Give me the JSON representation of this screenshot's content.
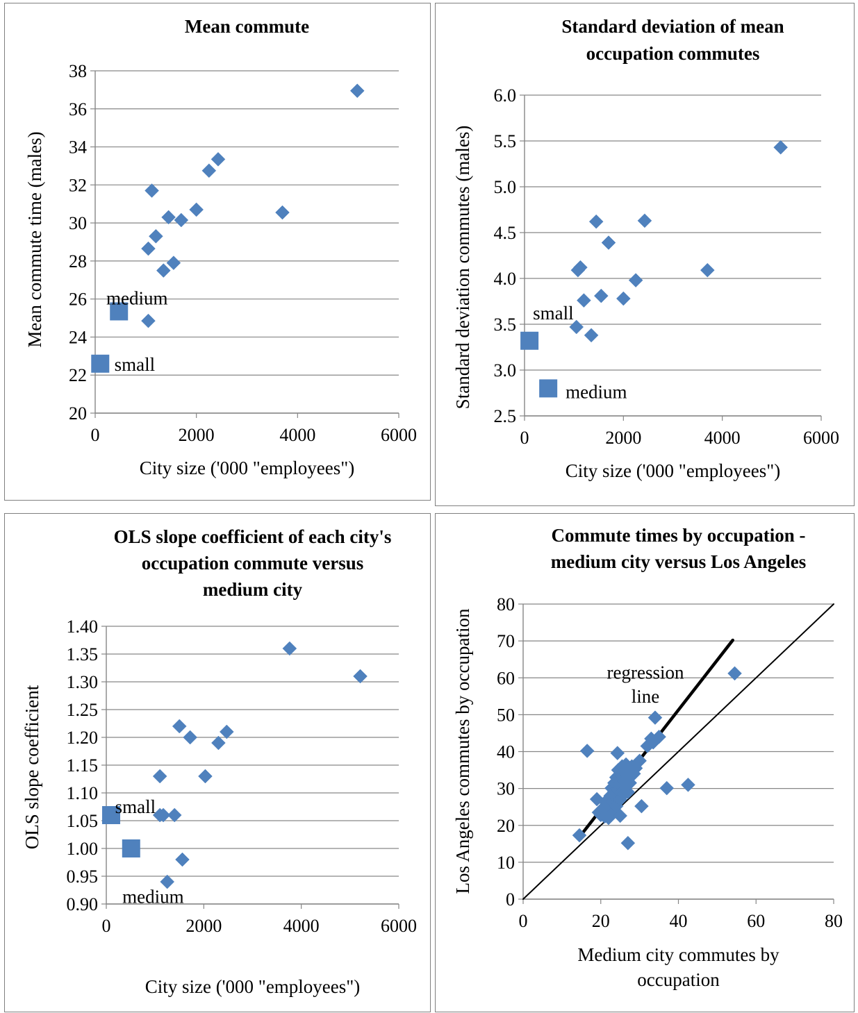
{
  "chart_data": [
    {
      "type": "scatter",
      "title": [
        "Mean commute"
      ],
      "xlabel": [
        "City size ('000 \"employees\")"
      ],
      "ylabel": "Mean commute time (males)",
      "xlim": [
        0,
        6000
      ],
      "ylim": [
        20,
        38
      ],
      "xticks": [
        0,
        2000,
        4000,
        6000
      ],
      "yticks": [
        20,
        22,
        24,
        26,
        28,
        30,
        32,
        34,
        36,
        38
      ],
      "tick_decimals": 0,
      "grid": true,
      "series": [
        {
          "marker": "diamond",
          "color": "#4f81bd",
          "points": [
            [
              1050,
              24.85
            ],
            [
              1050,
              28.65
            ],
            [
              1120,
              31.7
            ],
            [
              1200,
              29.3
            ],
            [
              1350,
              27.5
            ],
            [
              1450,
              30.3
            ],
            [
              1550,
              27.9
            ],
            [
              1700,
              30.15
            ],
            [
              2000,
              30.7
            ],
            [
              2250,
              32.75
            ],
            [
              2430,
              33.35
            ],
            [
              3700,
              30.55
            ],
            [
              5180,
              36.95
            ]
          ]
        },
        {
          "marker": "square",
          "color": "#4f81bd",
          "points": [
            [
              100,
              22.6
            ],
            [
              470,
              25.35
            ]
          ]
        }
      ],
      "annotations": [
        {
          "text": "medium",
          "x": 220,
          "y": 26.05,
          "anchor": "start"
        },
        {
          "text": "small",
          "x": 380,
          "y": 22.55,
          "anchor": "start"
        }
      ]
    },
    {
      "type": "scatter",
      "title": [
        "Standard deviation of mean",
        "occupation commutes"
      ],
      "xlabel": [
        "City size ('000 \"employees\")"
      ],
      "ylabel": "Standard deviation commutes (males)",
      "xlim": [
        0,
        6000
      ],
      "ylim": [
        2.5,
        6.0
      ],
      "xticks": [
        0,
        2000,
        4000,
        6000
      ],
      "yticks": [
        2.5,
        3.0,
        3.5,
        4.0,
        4.5,
        5.0,
        5.5,
        6.0
      ],
      "tick_decimals": 1,
      "grid": true,
      "series": [
        {
          "marker": "diamond",
          "color": "#4f81bd",
          "points": [
            [
              1050,
              3.47
            ],
            [
              1080,
              4.09
            ],
            [
              1130,
              4.12
            ],
            [
              1200,
              3.76
            ],
            [
              1350,
              3.38
            ],
            [
              1450,
              4.62
            ],
            [
              1550,
              3.81
            ],
            [
              1700,
              4.39
            ],
            [
              2000,
              3.78
            ],
            [
              2250,
              3.98
            ],
            [
              2430,
              4.63
            ],
            [
              3700,
              4.09
            ],
            [
              5180,
              5.43
            ]
          ]
        },
        {
          "marker": "square",
          "color": "#4f81bd",
          "points": [
            [
              100,
              3.32
            ],
            [
              480,
              2.8
            ]
          ]
        }
      ],
      "annotations": [
        {
          "text": "small",
          "x": 170,
          "y": 3.62,
          "anchor": "start"
        },
        {
          "text": "medium",
          "x": 830,
          "y": 2.76,
          "anchor": "start"
        }
      ]
    },
    {
      "type": "scatter",
      "title": [
        "OLS slope coefficient of each city's",
        "occupation commute versus",
        "medium city"
      ],
      "xlabel": [
        "City size ('000 \"employees\")"
      ],
      "ylabel": "OLS slope coefficient",
      "xlim": [
        0,
        6000
      ],
      "ylim": [
        0.9,
        1.4
      ],
      "xticks": [
        0,
        2000,
        4000,
        6000
      ],
      "yticks": [
        0.9,
        0.95,
        1.0,
        1.05,
        1.1,
        1.15,
        1.2,
        1.25,
        1.3,
        1.35,
        1.4
      ],
      "tick_decimals": 2,
      "grid": true,
      "series": [
        {
          "marker": "diamond",
          "color": "#4f81bd",
          "points": [
            [
              1100,
              1.13
            ],
            [
              1100,
              1.06
            ],
            [
              1170,
              1.06
            ],
            [
              1250,
              0.94
            ],
            [
              1400,
              1.06
            ],
            [
              1500,
              1.22
            ],
            [
              1560,
              0.98
            ],
            [
              1720,
              1.2
            ],
            [
              2030,
              1.13
            ],
            [
              2300,
              1.19
            ],
            [
              2470,
              1.21
            ],
            [
              3760,
              1.36
            ],
            [
              5210,
              1.31
            ]
          ]
        },
        {
          "marker": "square",
          "color": "#4f81bd",
          "points": [
            [
              100,
              1.06
            ],
            [
              510,
              1.0
            ]
          ]
        }
      ],
      "annotations": [
        {
          "text": "small",
          "x": 180,
          "y": 1.075,
          "anchor": "start"
        },
        {
          "text": "medium",
          "x": 330,
          "y": 0.913,
          "anchor": "start"
        }
      ]
    },
    {
      "type": "scatter",
      "title": [
        "Commute times by occupation -",
        "medium city versus Los Angeles"
      ],
      "xlabel": [
        "Medium city commutes by",
        "occupation"
      ],
      "ylabel": "Los Angeles commutes by occupation",
      "xlim": [
        0,
        80
      ],
      "ylim": [
        0,
        80
      ],
      "xticks": [
        0,
        20,
        40,
        60,
        80
      ],
      "yticks": [
        0,
        10,
        20,
        30,
        40,
        50,
        60,
        70,
        80
      ],
      "tick_decimals": 0,
      "grid": true,
      "lines": [
        {
          "name": "",
          "from": [
            0,
            0
          ],
          "to": [
            80,
            80
          ],
          "width": 2
        },
        {
          "name": "regression line",
          "from": [
            15,
            17.5
          ],
          "to": [
            54,
            70.2
          ],
          "width": 4.5
        }
      ],
      "series": [
        {
          "marker": "diamond",
          "color": "#4f81bd",
          "points": [
            [
              14.5,
              17.3
            ],
            [
              16.5,
              40.2
            ],
            [
              19,
              27.1
            ],
            [
              19.5,
              23.5
            ],
            [
              20,
              22.8
            ],
            [
              20.5,
              24.3
            ],
            [
              21,
              25.1
            ],
            [
              21,
              22.4
            ],
            [
              21.5,
              26
            ],
            [
              21.5,
              23.6
            ],
            [
              22,
              27.2
            ],
            [
              22,
              22
            ],
            [
              22.5,
              28
            ],
            [
              22.5,
              24.7
            ],
            [
              22.8,
              30.1
            ],
            [
              23,
              26.5
            ],
            [
              23.2,
              23.5
            ],
            [
              23.5,
              29.2
            ],
            [
              23.5,
              31.5
            ],
            [
              24,
              27.5
            ],
            [
              24,
              25.2
            ],
            [
              24,
              33
            ],
            [
              24.3,
              39.6
            ],
            [
              24.5,
              29.5
            ],
            [
              24.5,
              35
            ],
            [
              25,
              31
            ],
            [
              25,
              27
            ],
            [
              25,
              22.6
            ],
            [
              25.5,
              33.5
            ],
            [
              25.5,
              29
            ],
            [
              25.5,
              36
            ],
            [
              26,
              32
            ],
            [
              26,
              28.5
            ],
            [
              26,
              34.5
            ],
            [
              26.5,
              30.5
            ],
            [
              26.5,
              36.5
            ],
            [
              27,
              33
            ],
            [
              27,
              15.2
            ],
            [
              27,
              29
            ],
            [
              27.5,
              35
            ],
            [
              27.5,
              31.5
            ],
            [
              28,
              33.5
            ],
            [
              28,
              36
            ],
            [
              28.5,
              34
            ],
            [
              29,
              35.5
            ],
            [
              30,
              37.5
            ],
            [
              30.5,
              25.2
            ],
            [
              32,
              41.5
            ],
            [
              33,
              43.5
            ],
            [
              33.5,
              42.5
            ],
            [
              34,
              49.2
            ],
            [
              35,
              44
            ],
            [
              37,
              30.1
            ],
            [
              42.5,
              31
            ],
            [
              54.5,
              61.2
            ]
          ]
        }
      ],
      "annotations": [
        {
          "text": "regression",
          "x": 31.5,
          "y": 61.5,
          "anchor": "middle"
        },
        {
          "text": "line",
          "x": 31.5,
          "y": 55,
          "anchor": "middle"
        }
      ]
    }
  ]
}
